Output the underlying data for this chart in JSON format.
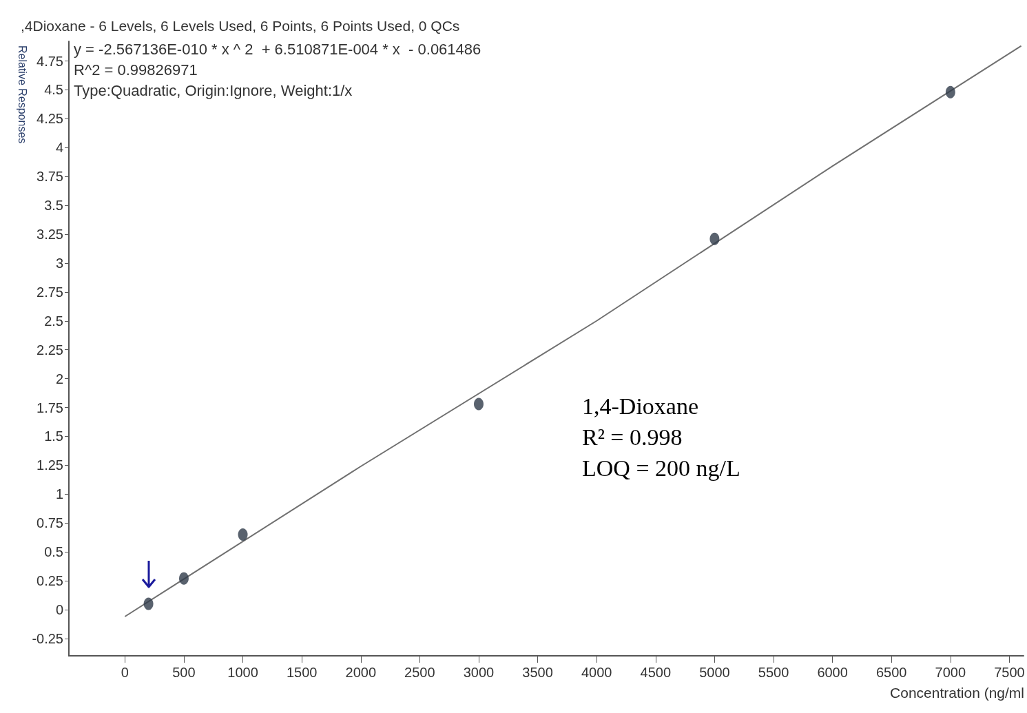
{
  "chart_data": {
    "type": "scatter",
    "title": ",4Dioxane - 6 Levels, 6 Levels Used, 6 Points, 6 Points Used, 0 QCs",
    "xlabel": "Concentration (ng/ml",
    "ylabel": "Relative Responses",
    "series": [
      {
        "color": "#2f3b4a",
        "marker": "circle",
        "x": [
          200,
          500,
          1000,
          3000,
          5000,
          7000
        ],
        "values": [
          0.05,
          0.27,
          0.65,
          1.78,
          3.21,
          4.48
        ]
      },
      {
        "type": "line",
        "color": "#707070",
        "marker": "none",
        "line_style": "solid",
        "x": [
          0,
          2000,
          4000,
          6000,
          7600
        ],
        "values": [
          -0.06,
          1.24,
          2.5,
          3.84,
          4.88
        ]
      }
    ],
    "xlim": [
      -475,
      7620
    ],
    "ylim": [
      -0.4,
      4.92
    ],
    "xticks": [
      0,
      500,
      1000,
      1500,
      2000,
      2500,
      3000,
      3500,
      4000,
      4500,
      5000,
      5500,
      6000,
      6500,
      7000,
      7500
    ],
    "yticks": [
      -0.25,
      0,
      0.25,
      0.5,
      0.75,
      1,
      1.25,
      1.5,
      1.75,
      2,
      2.25,
      2.5,
      2.75,
      3,
      3.25,
      3.5,
      3.75,
      4,
      4.25,
      4.5,
      4.75
    ],
    "grid": false,
    "annotations": [
      "y = -2.567136E-010 * x ^ 2  + 6.510871E-004 * x  - 0.061486",
      "R^2 = 0.99826971",
      "Type:Quadratic, Origin:Ignore, Weight:1/x",
      "1,4-Dioxane",
      "R² = 0.998",
      "LOQ = 200 ng/L"
    ]
  }
}
